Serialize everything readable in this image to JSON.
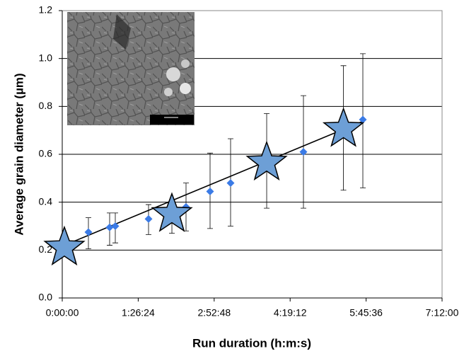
{
  "chart_data": {
    "type": "scatter",
    "y_label": "Average grain diameter (µm)",
    "x_label": "Run duration (h:m:s)",
    "xlim": [
      0,
      25920
    ],
    "xticks": [
      {
        "value": 0,
        "label": "0:00:00"
      },
      {
        "value": 5184,
        "label": "1:26:24"
      },
      {
        "value": 10368,
        "label": "2:52:48"
      },
      {
        "value": 15552,
        "label": "4:19:12"
      },
      {
        "value": 20736,
        "label": "5:45:36"
      },
      {
        "value": 25920,
        "label": "7:12:00"
      }
    ],
    "ylim": [
      0,
      1.2
    ],
    "yticks": [
      {
        "value": 0,
        "label": "0.0"
      },
      {
        "value": 0.2,
        "label": "0.2"
      },
      {
        "value": 0.4,
        "label": "0.4"
      },
      {
        "value": 0.6,
        "label": "0.6"
      },
      {
        "value": 0.8,
        "label": "0.8"
      },
      {
        "value": 1,
        "label": "1.0"
      },
      {
        "value": 1.2,
        "label": "1.2"
      }
    ],
    "grid": true,
    "series": [
      {
        "marker": "diamond",
        "color": "#3b7be6",
        "x": [
          1786,
          3234,
          3620,
          5889,
          8447,
          10088,
          11488,
          16460,
          20514
        ],
        "values": [
          0.275,
          0.295,
          0.3,
          0.33,
          0.38,
          0.445,
          0.48,
          0.61,
          0.745
        ],
        "err_low": [
          0.205,
          0.22,
          0.23,
          0.265,
          0.28,
          0.29,
          0.3,
          0.375,
          0.46
        ],
        "err_high": [
          0.335,
          0.355,
          0.355,
          0.39,
          0.48,
          0.605,
          0.665,
          0.845,
          1.02
        ]
      },
      {
        "marker": "star",
        "color": "#6d9fd6",
        "x": [
          145,
          7483,
          13951,
          19190
        ],
        "values": [
          0.21,
          0.35,
          0.565,
          0.705
        ],
        "err_low": [
          0.21,
          0.27,
          0.375,
          0.45
        ],
        "err_high": [
          0.21,
          0.35,
          0.77,
          0.97
        ]
      },
      {
        "marker": "line",
        "color": "#000000",
        "x": [
          145,
          20600
        ],
        "values": [
          0.22,
          0.74
        ]
      }
    ]
  }
}
